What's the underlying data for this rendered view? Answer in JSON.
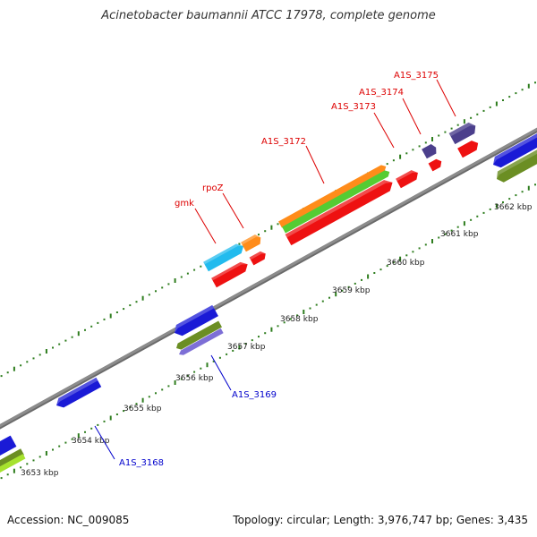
{
  "title": "Acinetobacter baumannii ATCC 17978, complete genome",
  "accession": "Accession: NC_009085",
  "summary": "Topology: circular; Length: 3,976,747 bp; Genes: 3,435",
  "colors": {
    "backbone": "#8c8c8c",
    "tick": "#2e7d1e",
    "forward_label": "#dd0000",
    "reverse_label": "#0000cc",
    "red_cds": "#ee1111",
    "blue_cds": "#1a1ad6",
    "orange_cds": "#ff8c1a",
    "green_cds": "#55cc33",
    "olive_cds": "#6b8e23",
    "cyan_cds": "#22bbee",
    "purple_cds": "#4b3f8c",
    "lavender_cds": "#7d6fd6",
    "lime_cds": "#a6e22e"
  },
  "ticks": {
    "labels": [
      "3653 kbp",
      "3654 kbp",
      "3655 kbp",
      "3656 kbp",
      "3657 kbp",
      "3658 kbp",
      "3659 kbp",
      "3660 kbp",
      "3661 kbp",
      "3662 kbp"
    ]
  },
  "gene_labels": {
    "forward": [
      "gmk",
      "rpoZ",
      "A1S_3172",
      "A1S_3173",
      "A1S_3174",
      "A1S_3175"
    ],
    "reverse": [
      "A1S_3168",
      "A1S_3169"
    ]
  }
}
